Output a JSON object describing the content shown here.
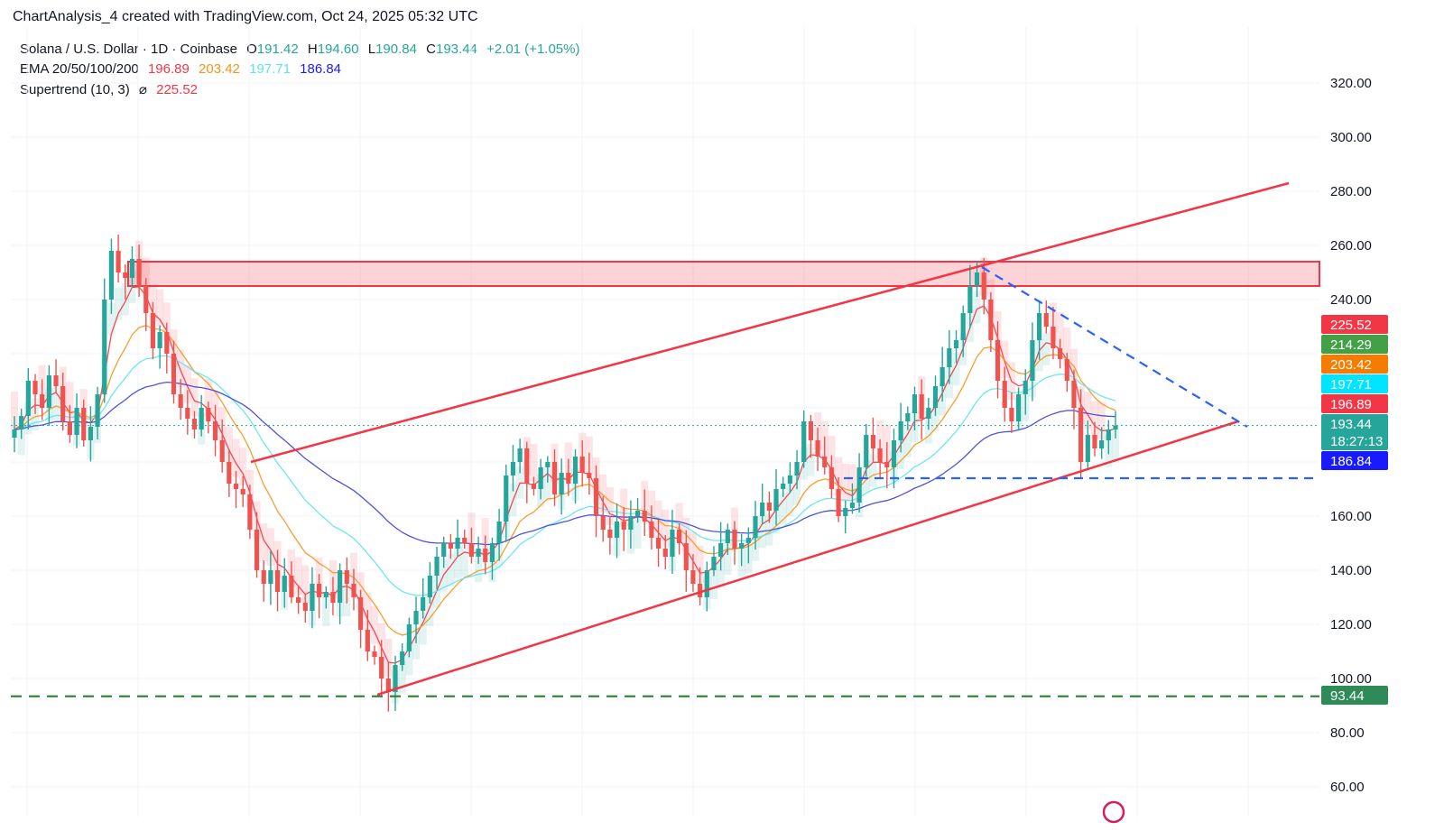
{
  "header": {
    "credit": "ChartAnalysis_4 created with TradingView.com, Oct 24, 2025 05:32 UTC"
  },
  "legend": {
    "symbol": "Solana / U.S. Dollar · 1D · Coinbase",
    "o_label": "O",
    "o_value": "191.42",
    "h_label": "H",
    "h_value": "194.60",
    "l_label": "L",
    "l_value": "190.84",
    "c_label": "C",
    "c_value": "193.44",
    "change": "+2.01 (+1.05%)",
    "ema_label": "EMA 20/50/100/200",
    "ema20": "196.89",
    "ema50": "203.42",
    "ema100": "197.71",
    "ema200": "186.84",
    "supertrend_label": "Supertrend (10, 3)",
    "supertrend_symbol": "⌀",
    "supertrend_value": "225.52"
  },
  "colors": {
    "up": "#26a69a",
    "down": "#ef5350",
    "ema20": "#f23645",
    "ema50": "#f7931a",
    "ema100": "#5ee3f0",
    "ema200": "#3d3fd6",
    "resistance": "#f23645",
    "channel": "#f23645",
    "support": "#2962ff",
    "low_line": "#2e7d32"
  },
  "chart_data": {
    "type": "candlestick",
    "ylim": [
      55,
      330
    ],
    "y_ticks": [
      "320.00",
      "300.00",
      "280.00",
      "260.00",
      "240.00",
      "160.00",
      "140.00",
      "120.00",
      "100.00",
      "80.00",
      "60.00"
    ],
    "price_badges": [
      {
        "label": "225.52",
        "value": 225.52,
        "color": "#f23645"
      },
      {
        "label": "214.29",
        "value": 214.29,
        "color": "#43a047"
      },
      {
        "label": "203.42",
        "value": 203.42,
        "color": "#f57c00"
      },
      {
        "label": "197.71",
        "value": 197.71,
        "color": "#00e5ff"
      },
      {
        "label": "196.89",
        "value": 196.89,
        "color": "#f23645"
      },
      {
        "label": "193.44",
        "value": 193.44,
        "color": "#26a69a",
        "sub": "18:27:13"
      },
      {
        "label": "186.84",
        "value": 186.84,
        "color": "#1a1aff"
      },
      {
        "label": "93.44",
        "value": 93.44,
        "color": "#2e8b57"
      }
    ],
    "last_price": 193.44,
    "closes": [
      192,
      197,
      210,
      205,
      200,
      212,
      208,
      195,
      190,
      200,
      188,
      193,
      205,
      240,
      258,
      250,
      248,
      255,
      245,
      235,
      222,
      228,
      220,
      205,
      200,
      196,
      192,
      200,
      195,
      188,
      180,
      172,
      170,
      168,
      155,
      140,
      135,
      140,
      132,
      138,
      130,
      128,
      125,
      135,
      130,
      132,
      128,
      140,
      135,
      130,
      118,
      110,
      108,
      100,
      95,
      105,
      110,
      120,
      125,
      130,
      138,
      145,
      150,
      148,
      152,
      150,
      145,
      148,
      143,
      150,
      158,
      175,
      180,
      185,
      172,
      170,
      178,
      180,
      168,
      176,
      172,
      182,
      176,
      174,
      160,
      155,
      152,
      158,
      155,
      160,
      162,
      158,
      152,
      148,
      145,
      155,
      150,
      140,
      135,
      130,
      140,
      145,
      150,
      155,
      148,
      150,
      152,
      160,
      165,
      162,
      170,
      172,
      175,
      180,
      195,
      188,
      182,
      178,
      170,
      160,
      163,
      165,
      178,
      190,
      185,
      180,
      178,
      188,
      195,
      198,
      205,
      196,
      200,
      208,
      215,
      222,
      225,
      235,
      245,
      250,
      240,
      225,
      210,
      200,
      195,
      205,
      210,
      225,
      235,
      230,
      222,
      218,
      210,
      200,
      180,
      190,
      185,
      188,
      192,
      193.44
    ],
    "resistance_zone": [
      245,
      254
    ],
    "horizontal_support": 174,
    "major_low_line": 93.44,
    "channel_upper": [
      [
        180,
        283
      ],
      [
        252,
        250
      ]
    ],
    "channel_lower": [
      [
        94,
        195
      ]
    ],
    "descending_trendline": [
      [
        252,
        193
      ]
    ]
  },
  "watermark": "tradingview-logo-icon"
}
